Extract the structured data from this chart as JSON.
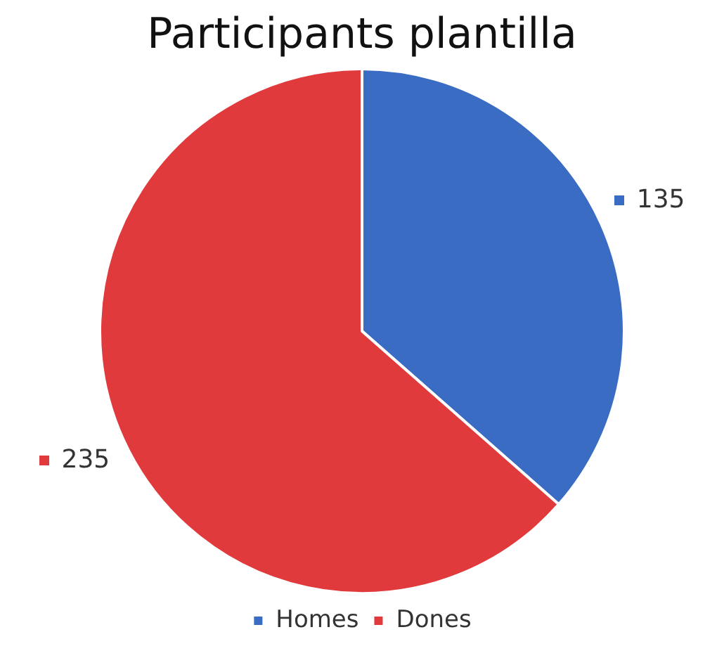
{
  "chart_data": {
    "type": "pie",
    "title": "Participants plantilla",
    "categories": [
      "Homes",
      "Dones"
    ],
    "values": [
      135,
      235
    ],
    "colors": [
      "#3b6cc4",
      "#e03a3c"
    ],
    "data_labels": true,
    "legend": "bottom"
  }
}
